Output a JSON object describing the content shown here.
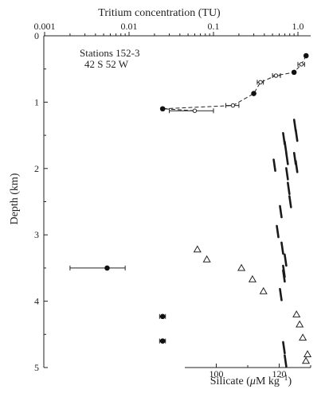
{
  "chart_data": {
    "type": "scatter",
    "title": "",
    "station_label_line1": "Stations 152-3",
    "station_label_line2": "42 S 52 W",
    "top_axis": {
      "label": "Tritium concentration (TU)",
      "scale": "log",
      "range": [
        0.001,
        2.0
      ],
      "ticks": [
        0.001,
        0.01,
        0.1,
        1.0
      ],
      "tick_labels": [
        "0.001",
        "0.01",
        "0.1",
        "1.0"
      ]
    },
    "left_axis": {
      "label": "Depth (km)",
      "range": [
        0,
        5
      ],
      "ticks": [
        0,
        1,
        2,
        3,
        4,
        5
      ],
      "tick_labels": [
        "0",
        "1",
        "2",
        "3",
        "4",
        "5"
      ]
    },
    "bottom_axis": {
      "label_prefix": "Silicate (",
      "label_mu": "μ",
      "label_mid": "M kg",
      "label_exp": "−1",
      "label_suffix": ")",
      "range": [
        90,
        130
      ],
      "ticks": [
        100,
        120
      ],
      "tick_labels": [
        "100",
        "120"
      ]
    },
    "grid": false,
    "series": [
      {
        "symbol": "filled-circle",
        "points": [
          {
            "tritium": 1.25,
            "depth_km": 0.3
          },
          {
            "tritium": 0.9,
            "depth_km": 0.55
          },
          {
            "tritium": 0.3,
            "depth_km": 0.87
          },
          {
            "tritium": 0.025,
            "depth_km": 1.1
          },
          {
            "tritium": 0.0055,
            "depth_km": 3.5,
            "err_low": 0.002,
            "err_high": 0.009
          },
          {
            "tritium": 0.025,
            "depth_km": 4.23,
            "err_low": 0.023,
            "err_high": 0.027
          },
          {
            "tritium": 0.025,
            "depth_km": 4.6,
            "err_low": 0.023,
            "err_high": 0.027
          }
        ]
      },
      {
        "symbol": "open-circle",
        "points": [
          {
            "tritium": 1.1,
            "depth_km": 0.43,
            "err_low": 1.0,
            "err_high": 1.2
          },
          {
            "tritium": 0.55,
            "depth_km": 0.6,
            "err_low": 0.5,
            "err_high": 0.62
          },
          {
            "tritium": 0.36,
            "depth_km": 0.7,
            "err_low": 0.33,
            "err_high": 0.39
          },
          {
            "tritium": 0.17,
            "depth_km": 1.05,
            "err_low": 0.14,
            "err_high": 0.2
          },
          {
            "tritium": 0.06,
            "depth_km": 1.13,
            "err_low": 0.03,
            "err_high": 0.1
          }
        ]
      },
      {
        "symbol": "open-triangle",
        "axis": "silicate",
        "points": [
          {
            "silicate": 94,
            "depth_km": 3.22
          },
          {
            "silicate": 97,
            "depth_km": 3.37
          },
          {
            "silicate": 108,
            "depth_km": 3.5
          },
          {
            "silicate": 111.5,
            "depth_km": 3.67
          },
          {
            "silicate": 115,
            "depth_km": 3.85
          },
          {
            "silicate": 125.5,
            "depth_km": 4.2
          },
          {
            "silicate": 126.5,
            "depth_km": 4.35
          },
          {
            "silicate": 127.5,
            "depth_km": 4.55
          },
          {
            "silicate": 129,
            "depth_km": 4.8
          },
          {
            "silicate": 128.5,
            "depth_km": 4.9
          }
        ]
      }
    ],
    "trace": {
      "axis": "silicate",
      "points": [
        {
          "silicate": 125,
          "depth_km": 1.35
        },
        {
          "silicate": 125.5,
          "depth_km": 1.5
        },
        {
          "silicate": 121.5,
          "depth_km": 1.55
        },
        {
          "silicate": 122,
          "depth_km": 1.68
        },
        {
          "silicate": 122.5,
          "depth_km": 1.85
        },
        {
          "silicate": 125,
          "depth_km": 1.85
        },
        {
          "silicate": 125.5,
          "depth_km": 1.97
        },
        {
          "silicate": 118.5,
          "depth_km": 1.95
        },
        {
          "silicate": 122.5,
          "depth_km": 2.08
        },
        {
          "silicate": 123,
          "depth_km": 2.3
        },
        {
          "silicate": 123.5,
          "depth_km": 2.5
        },
        {
          "silicate": 120.5,
          "depth_km": 2.65
        },
        {
          "silicate": 119.5,
          "depth_km": 2.95
        },
        {
          "silicate": 121,
          "depth_km": 3.2
        },
        {
          "silicate": 122,
          "depth_km": 3.38
        },
        {
          "silicate": 121.5,
          "depth_km": 3.55
        },
        {
          "silicate": 121.5,
          "depth_km": 3.62
        },
        {
          "silicate": 120.5,
          "depth_km": 3.9
        },
        {
          "silicate": 121.5,
          "depth_km": 4.7
        },
        {
          "silicate": 122,
          "depth_km": 4.9
        }
      ]
    }
  }
}
